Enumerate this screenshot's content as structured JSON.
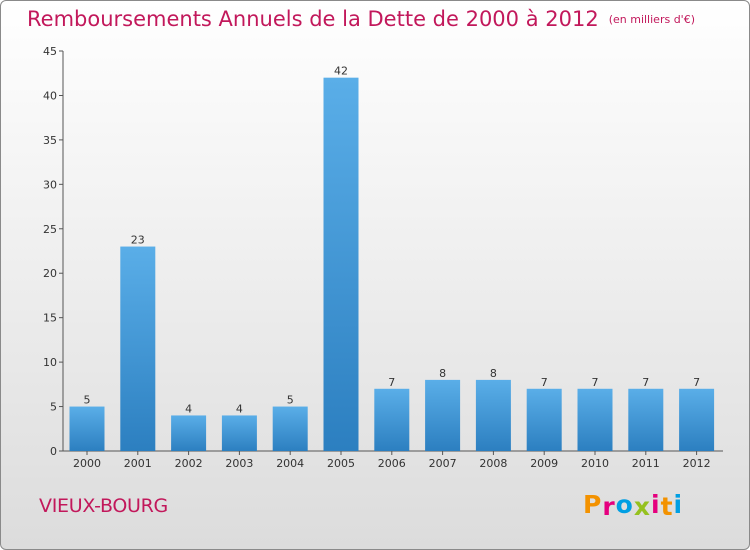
{
  "header": {
    "title": "Remboursements Annuels de la Dette de 2000 à 2012",
    "unit": "(en milliers d'€)"
  },
  "footer": {
    "commune": "VIEUX-BOURG",
    "logo_text": "Proxiti",
    "logo_colors": [
      "#f39200",
      "#e5007e",
      "#009fe3",
      "#95c11f",
      "#e5007e",
      "#f39200",
      "#009fe3"
    ]
  },
  "chart_data": {
    "type": "bar",
    "title": "Remboursements Annuels de la Dette de 2000 à 2012",
    "xlabel": "",
    "ylabel": "",
    "categories": [
      "2000",
      "2001",
      "2002",
      "2003",
      "2004",
      "2005",
      "2006",
      "2007",
      "2008",
      "2009",
      "2010",
      "2011",
      "2012"
    ],
    "values": [
      5,
      23,
      4,
      4,
      5,
      42,
      7,
      8,
      8,
      7,
      7,
      7,
      7
    ],
    "ylim": [
      0,
      45
    ],
    "yticks": [
      0,
      5,
      10,
      15,
      20,
      25,
      30,
      35,
      40,
      45
    ],
    "grid": false,
    "bar_color": "#3d95d6",
    "data_labels": true
  }
}
